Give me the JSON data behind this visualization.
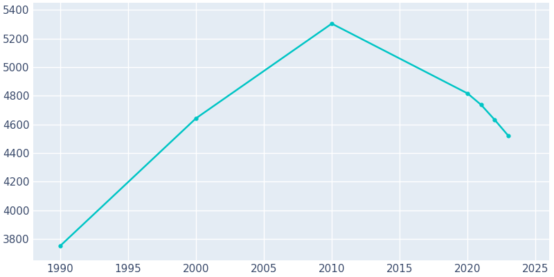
{
  "years": [
    1990,
    2000,
    2010,
    2020,
    2021,
    2022,
    2023
  ],
  "population": [
    3751,
    4643,
    5305,
    4817,
    4737,
    4632,
    4521
  ],
  "line_color": "#00C5C5",
  "marker": "o",
  "marker_size": 3.5,
  "line_width": 1.8,
  "plot_bg_color": "#E4ECF4",
  "fig_bg_color": "#ffffff",
  "grid_color": "#ffffff",
  "xlim": [
    1988,
    2026
  ],
  "ylim": [
    3650,
    5450
  ],
  "xticks": [
    1990,
    1995,
    2000,
    2005,
    2010,
    2015,
    2020,
    2025
  ],
  "yticks": [
    3800,
    4000,
    4200,
    4400,
    4600,
    4800,
    5000,
    5200,
    5400
  ],
  "tick_color": "#3a4a6b",
  "tick_labelsize": 11
}
